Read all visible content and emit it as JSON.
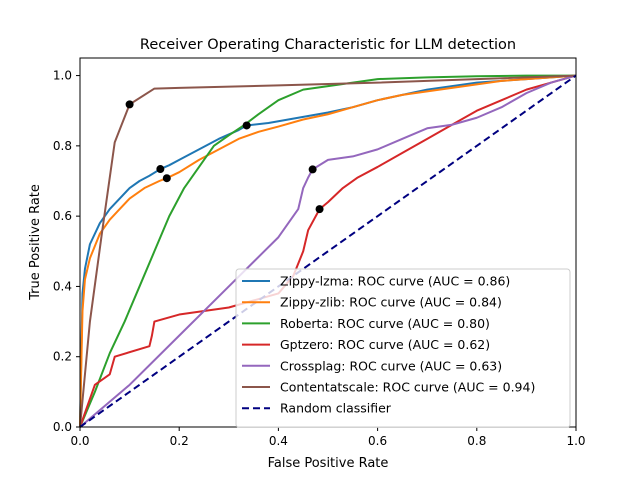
{
  "chart_data": {
    "type": "line",
    "title": "Receiver Operating Characteristic for LLM detection",
    "xlabel": "False Positive Rate",
    "ylabel": "True Positive Rate",
    "xlim": [
      0,
      1
    ],
    "ylim": [
      0,
      1.05
    ],
    "xticks": [
      "0.0",
      "0.2",
      "0.4",
      "0.6",
      "0.8",
      "1.0"
    ],
    "yticks": [
      "0.0",
      "0.2",
      "0.4",
      "0.6",
      "0.8",
      "1.0"
    ],
    "grid": false,
    "legend_position": "lower right",
    "series": [
      {
        "name": "Zippy-lzma: ROC curve (AUC = 0.86)",
        "color": "#1f77b4",
        "x": [
          0,
          0.005,
          0.01,
          0.02,
          0.04,
          0.06,
          0.08,
          0.1,
          0.12,
          0.14,
          0.162,
          0.18,
          0.2,
          0.24,
          0.28,
          0.32,
          0.336,
          0.38,
          0.42,
          0.46,
          0.5,
          0.55,
          0.6,
          0.65,
          0.7,
          0.75,
          0.8,
          0.85,
          0.9,
          0.95,
          1.0
        ],
        "y": [
          0,
          0.38,
          0.45,
          0.52,
          0.58,
          0.62,
          0.65,
          0.68,
          0.7,
          0.715,
          0.734,
          0.745,
          0.76,
          0.79,
          0.82,
          0.845,
          0.858,
          0.865,
          0.875,
          0.885,
          0.895,
          0.91,
          0.93,
          0.945,
          0.96,
          0.97,
          0.98,
          0.985,
          0.99,
          0.995,
          1.0
        ]
      },
      {
        "name": "Zippy-zlib: ROC curve (AUC = 0.84)",
        "color": "#ff7f0e",
        "x": [
          0,
          0.005,
          0.01,
          0.02,
          0.04,
          0.06,
          0.08,
          0.1,
          0.13,
          0.16,
          0.175,
          0.2,
          0.24,
          0.28,
          0.32,
          0.36,
          0.4,
          0.45,
          0.5,
          0.55,
          0.6,
          0.65,
          0.7,
          0.75,
          0.8,
          0.85,
          0.9,
          0.95,
          1.0
        ],
        "y": [
          0,
          0.33,
          0.42,
          0.48,
          0.55,
          0.59,
          0.62,
          0.65,
          0.68,
          0.7,
          0.708,
          0.725,
          0.76,
          0.79,
          0.82,
          0.84,
          0.855,
          0.875,
          0.89,
          0.91,
          0.93,
          0.945,
          0.955,
          0.965,
          0.975,
          0.985,
          0.99,
          0.995,
          1.0
        ]
      },
      {
        "name": "Roberta: ROC curve (AUC = 0.80)",
        "color": "#2ca02c",
        "x": [
          0,
          0.03,
          0.06,
          0.09,
          0.12,
          0.15,
          0.18,
          0.21,
          0.24,
          0.27,
          0.3,
          0.33,
          0.36,
          0.4,
          0.45,
          0.5,
          0.55,
          0.6,
          0.7,
          0.8,
          0.9,
          1.0
        ],
        "y": [
          0,
          0.1,
          0.21,
          0.3,
          0.4,
          0.5,
          0.6,
          0.68,
          0.74,
          0.8,
          0.83,
          0.858,
          0.89,
          0.93,
          0.96,
          0.97,
          0.98,
          0.99,
          0.995,
          0.998,
          1.0,
          1.0
        ]
      },
      {
        "name": "Gptzero: ROC curve (AUC = 0.62)",
        "color": "#d62728",
        "x": [
          0,
          0.03,
          0.06,
          0.07,
          0.14,
          0.145,
          0.15,
          0.2,
          0.3,
          0.4,
          0.43,
          0.45,
          0.46,
          0.483,
          0.5,
          0.53,
          0.56,
          0.6,
          0.65,
          0.7,
          0.75,
          0.8,
          0.85,
          0.9,
          0.95,
          1.0
        ],
        "y": [
          0,
          0.12,
          0.15,
          0.2,
          0.23,
          0.26,
          0.3,
          0.32,
          0.34,
          0.38,
          0.43,
          0.5,
          0.56,
          0.62,
          0.64,
          0.68,
          0.71,
          0.74,
          0.78,
          0.82,
          0.86,
          0.9,
          0.93,
          0.96,
          0.98,
          1.0
        ]
      },
      {
        "name": "Crossplag: ROC curve (AUC = 0.63)",
        "color": "#9467bd",
        "x": [
          0,
          0.1,
          0.2,
          0.3,
          0.4,
          0.44,
          0.45,
          0.46,
          0.469,
          0.5,
          0.55,
          0.6,
          0.65,
          0.7,
          0.75,
          0.8,
          0.85,
          0.9,
          0.95,
          1.0
        ],
        "y": [
          0,
          0.12,
          0.26,
          0.4,
          0.54,
          0.62,
          0.68,
          0.71,
          0.733,
          0.76,
          0.77,
          0.79,
          0.82,
          0.85,
          0.86,
          0.88,
          0.91,
          0.95,
          0.98,
          1.0
        ]
      },
      {
        "name": "Contentatscale: ROC curve (AUC = 0.94)",
        "color": "#8c564b",
        "x": [
          0,
          0.02,
          0.045,
          0.07,
          0.1,
          0.15,
          0.2,
          0.4,
          0.6,
          0.8,
          1.0
        ],
        "y": [
          0,
          0.3,
          0.56,
          0.81,
          0.918,
          0.963,
          0.965,
          0.972,
          0.98,
          0.99,
          1.0
        ]
      },
      {
        "name": "Random classifier",
        "color": "#000080",
        "dashed": true,
        "x": [
          0,
          1
        ],
        "y": [
          0,
          1
        ]
      }
    ],
    "markers": [
      {
        "x": 0.1,
        "y": 0.918
      },
      {
        "x": 0.162,
        "y": 0.734
      },
      {
        "x": 0.175,
        "y": 0.708
      },
      {
        "x": 0.336,
        "y": 0.858
      },
      {
        "x": 0.469,
        "y": 0.733
      },
      {
        "x": 0.483,
        "y": 0.62
      }
    ]
  }
}
